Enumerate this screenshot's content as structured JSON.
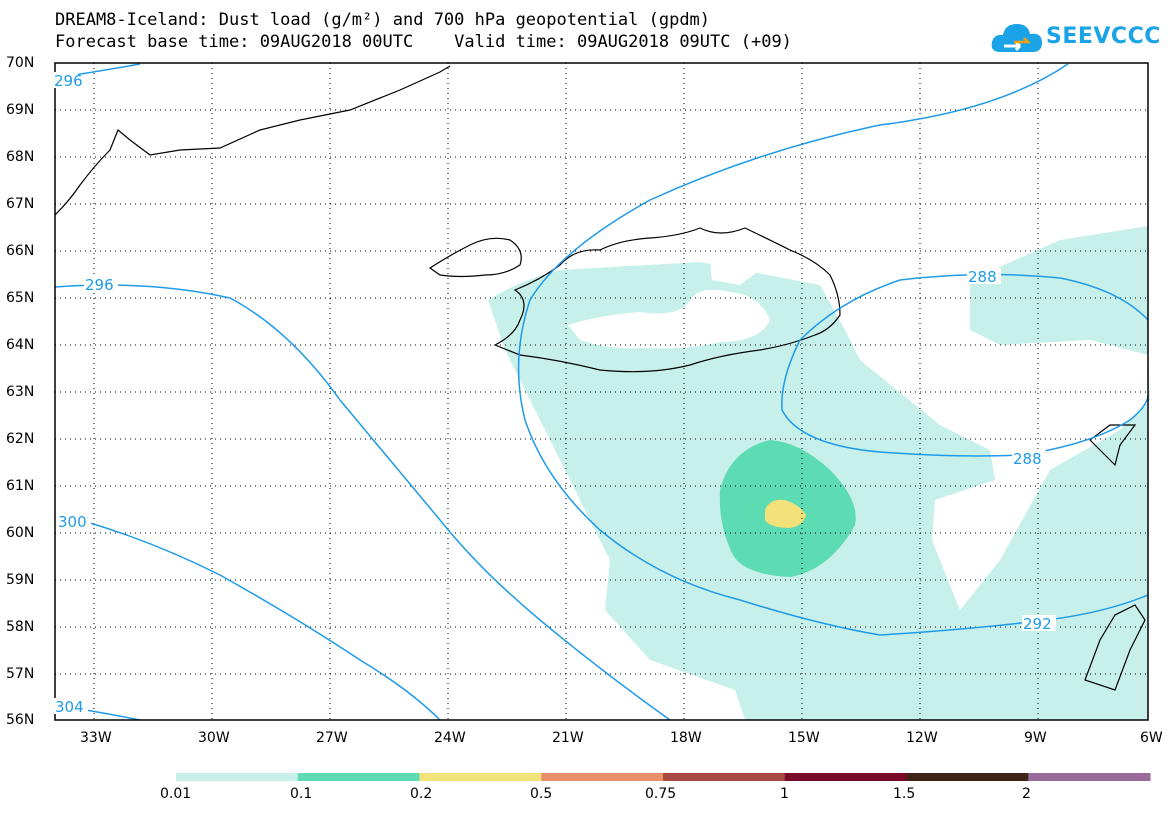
{
  "title": {
    "line1": "DREAM8-Iceland: Dust load (g/m²) and 700 hPa geopotential (gpdm)",
    "line2": "Forecast base time: 09AUG2018 00UTC    Valid time: 09AUG2018 09UTC (+09)"
  },
  "logo": {
    "text": "SEEVCCC",
    "icon": "cloud-logo-icon"
  },
  "map": {
    "lat_labels": [
      "70N",
      "69N",
      "68N",
      "67N",
      "66N",
      "65N",
      "64N",
      "63N",
      "62N",
      "61N",
      "60N",
      "59N",
      "58N",
      "57N",
      "56N"
    ],
    "lon_labels": [
      "33W",
      "30W",
      "27W",
      "24W",
      "21W",
      "18W",
      "15W",
      "12W",
      "9W",
      "6W"
    ],
    "contour_labels": [
      "296",
      "296",
      "300",
      "304",
      "288",
      "288",
      "292"
    ],
    "colors": {
      "contour": "#1e9be8",
      "coast": "#000000",
      "grid": "#000000"
    }
  },
  "colorbar": {
    "labels": [
      "0.01",
      "0.1",
      "0.2",
      "0.5",
      "0.75",
      "1",
      "1.5",
      "2"
    ],
    "colors": [
      "#c8f0ea",
      "#5ddbb2",
      "#f3e27a",
      "#e88f6a",
      "#a84a42",
      "#7a0a2a",
      "#3d2414",
      "#9a6a9a"
    ]
  }
}
